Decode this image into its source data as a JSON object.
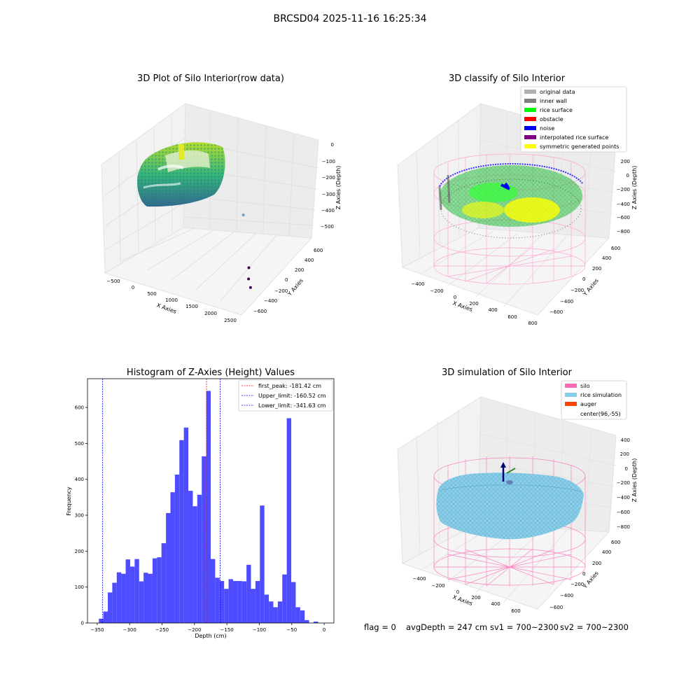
{
  "figure": {
    "suptitle": "BRCSD04 2025-11-16 16:25:34",
    "footer": {
      "flag": "flag = 0",
      "avgDepth": "avgDepth = 247 cm",
      "sv1": "sv1 = 700~2300",
      "sv2": "sv2 = 700~2300"
    }
  },
  "chart_data": [
    {
      "type": "scatter",
      "subtype": "3d",
      "title": "3D Plot of Silo Interior(row data)",
      "xlabel": "X Axies",
      "ylabel": "Y Axies",
      "zlabel": "Z Axies (Depth)",
      "xticks": [
        "−500",
        "0",
        "500",
        "1000",
        "1500",
        "2000",
        "2500"
      ],
      "yticks": [
        "−600",
        "−400",
        "−200",
        "0",
        "200",
        "400",
        "600"
      ],
      "zticks": [
        "0",
        "−100",
        "−200",
        "−300",
        "−400",
        "−500"
      ],
      "xlim": [
        -650,
        2550
      ],
      "ylim": [
        -700,
        700
      ],
      "zlim": [
        -560,
        20
      ],
      "colormap": [
        "#440154",
        "#31688e",
        "#35b779",
        "#fde725"
      ],
      "outliers": [
        {
          "x": 2180,
          "y": -280,
          "z": -420
        },
        {
          "x": 2200,
          "y": -300,
          "z": -470
        },
        {
          "x": 2400,
          "y": -420,
          "z": -480
        },
        {
          "x": 1200,
          "y": 380,
          "z": -330
        }
      ]
    },
    {
      "type": "scatter",
      "subtype": "3d",
      "title": "3D classify of Silo Interior",
      "xlabel": "X Axies",
      "ylabel": "Y Axies",
      "zlabel": "Z Axies (Depth)",
      "xticks": [
        "−400",
        "−200",
        "0",
        "200",
        "400",
        "600",
        "800"
      ],
      "yticks": [
        "−600",
        "−400",
        "−200",
        "0",
        "200",
        "400",
        "600"
      ],
      "zticks": [
        "200",
        "0",
        "−200",
        "−400",
        "−600",
        "−800"
      ],
      "legend_position": "top-right",
      "legend": [
        {
          "label": "original data",
          "color": "#b0b0b0"
        },
        {
          "label": "inner wall",
          "color": "#808080"
        },
        {
          "label": "rice surface",
          "color": "#00ff00"
        },
        {
          "label": "obstacle",
          "color": "#ff0000"
        },
        {
          "label": "noise",
          "color": "#0000ff"
        },
        {
          "label": "interpolated rice surface",
          "color": "#800080"
        },
        {
          "label": "symmetric generated points",
          "color": "#ffff00"
        }
      ]
    },
    {
      "type": "bar",
      "subtype": "histogram",
      "title": "Histogram of Z-Axies (Height) Values",
      "xlabel": "Depth (cm)",
      "ylabel": "Frequency",
      "xlim": [
        -365,
        15
      ],
      "ylim": [
        0,
        680
      ],
      "xticks": [
        -350,
        -300,
        -250,
        -200,
        -150,
        -100,
        -50,
        0
      ],
      "yticks": [
        0,
        100,
        200,
        300,
        400,
        500,
        600
      ],
      "bar_color": "#4d4dff",
      "bin_start": -347.5,
      "bin_width": 6.9,
      "counts": [
        12,
        32,
        85,
        112,
        141,
        137,
        177,
        157,
        178,
        116,
        140,
        137,
        180,
        183,
        222,
        306,
        364,
        413,
        509,
        544,
        368,
        325,
        357,
        464,
        646,
        178,
        126,
        117,
        95,
        122,
        117,
        117,
        116,
        162,
        95,
        117,
        327,
        79,
        60,
        44,
        60,
        135,
        570,
        114,
        44,
        35,
        8,
        0,
        4
      ],
      "vlines": [
        {
          "x": -181.42,
          "color": "#ff0000",
          "label": "first_peak: -181.42 cm"
        },
        {
          "x": -160.52,
          "color": "#0000ff",
          "label": "Upper_limit: -160.52 cm"
        },
        {
          "x": -341.63,
          "color": "#0000ff",
          "label": "Lower_limit: -341.63 cm"
        }
      ],
      "legend_position": "top-right"
    },
    {
      "type": "scatter",
      "subtype": "3d-surface",
      "title": "3D simulation of Silo Interior",
      "xlabel": "X Axies",
      "ylabel": "Y Axies",
      "zlabel": "Z Axies (Depth)",
      "xticks": [
        "−400",
        "−200",
        "0",
        "200",
        "400",
        "600"
      ],
      "yticks": [
        "−600",
        "−400",
        "−200",
        "0",
        "200",
        "400",
        "600"
      ],
      "zticks": [
        "400",
        "200",
        "0",
        "−200",
        "−400",
        "−600",
        "−800"
      ],
      "legend_position": "top-right",
      "legend": [
        {
          "label": "silo",
          "color": "#ff69b4"
        },
        {
          "label": "rice simulation",
          "color": "#87ceeb"
        },
        {
          "label": "auger",
          "color": "#ff4500"
        },
        {
          "label": "center(96,-55)",
          "color": "none"
        }
      ]
    }
  ]
}
